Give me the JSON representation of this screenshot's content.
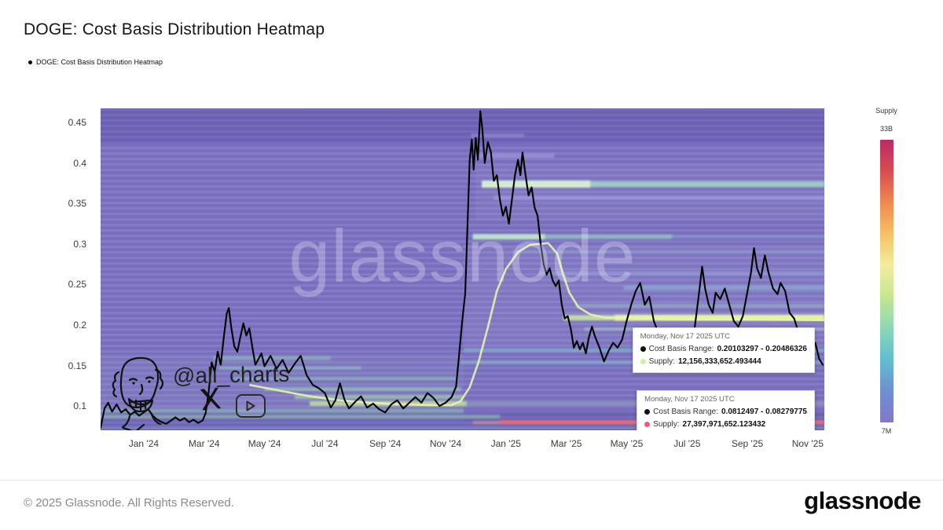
{
  "header": {
    "title": "DOGE: Cost Basis Distribution Heatmap",
    "legend_label": "DOGE: Cost Basis Distribution Heatmap"
  },
  "watermark": {
    "text": "glassnode"
  },
  "signature": {
    "handle": "@ali_charts"
  },
  "tooltips": [
    {
      "date": "Monday, Nov 17 2025 UTC",
      "cost_basis_label": "Cost Basis Range:",
      "cost_basis_value": "0.20103297 - 0.20486326",
      "supply_label": "Supply:",
      "supply_value": "12,156,333,652.493444",
      "cost_basis_dot_color": "#111111",
      "supply_dot_color": "#d6ef9c"
    },
    {
      "date": "Monday, Nov 17 2025 UTC",
      "cost_basis_label": "Cost Basis Range:",
      "cost_basis_value": "0.0812497 - 0.08279775",
      "supply_label": "Supply:",
      "supply_value": "27,397,971,652.123432",
      "cost_basis_dot_color": "#111111",
      "supply_dot_color": "#f05c6e"
    }
  ],
  "footer": {
    "copyright": "© 2025 Glassnode. All Rights Reserved.",
    "logo_text": "glassnode"
  },
  "chart_data": {
    "type": "heatmap",
    "title": "DOGE: Cost Basis Distribution Heatmap",
    "x_axis_desc": "Date, Nov 2023 - Nov 2025 (months relative to Jan 2024)",
    "y_axis_desc": "DOGE price / cost basis (USD)",
    "x_domain": [
      -1.43,
      22.55
    ],
    "y_domain": [
      0.071,
      0.4685
    ],
    "x_ticks": [
      {
        "label": "Jan '24",
        "m": 0
      },
      {
        "label": "Mar '24",
        "m": 2
      },
      {
        "label": "May '24",
        "m": 4
      },
      {
        "label": "Jul '24",
        "m": 6
      },
      {
        "label": "Sep '24",
        "m": 8
      },
      {
        "label": "Nov '24",
        "m": 10
      },
      {
        "label": "Jan '25",
        "m": 12
      },
      {
        "label": "Mar '25",
        "m": 14
      },
      {
        "label": "May '25",
        "m": 16
      },
      {
        "label": "Jul '25",
        "m": 18
      },
      {
        "label": "Sep '25",
        "m": 20
      },
      {
        "label": "Nov '25",
        "m": 22
      }
    ],
    "y_ticks": [
      "0.45",
      "0.4",
      "0.35",
      "0.3",
      "0.25",
      "0.2",
      "0.15",
      "0.1"
    ],
    "colorbar": {
      "title": "Supply",
      "max_label": "33B",
      "min_label": "7M",
      "stops": [
        "#bb2a66",
        "#d84d51",
        "#ef8950",
        "#f6c164",
        "#f2ee9e",
        "#c4e690",
        "#8cd8b6",
        "#63bdd1",
        "#6f8ed1",
        "#8278c8"
      ]
    },
    "base_color": "#7d73c3",
    "price_line_color": "#000000",
    "curve_color": "#e9f3ae",
    "soft_regions": [
      {
        "p_from": 0.4685,
        "p_to": 0.425,
        "m_from": -1.43,
        "m_to": 22.55,
        "color": "rgba(62,50,148,0.22)"
      },
      {
        "p_from": 0.4,
        "p_to": 0.33,
        "m_from": 11.0,
        "m_to": 22.55,
        "color": "rgba(255,255,255,0.05)"
      },
      {
        "p_from": 0.3,
        "p_to": 0.175,
        "m_from": 10.6,
        "m_to": 22.55,
        "color": "rgba(255,255,255,0.06)"
      },
      {
        "p_from": 0.165,
        "p_to": 0.08,
        "m_from": -1.43,
        "m_to": 10.6,
        "color": "rgba(190,230,200,0.07)"
      },
      {
        "p_from": 0.095,
        "p_to": 0.071,
        "m_from": -1.43,
        "m_to": 22.55,
        "color": "rgba(58,46,140,0.18)"
      }
    ],
    "heatmap_bands": [
      {
        "price": 0.435,
        "from": 10.85,
        "to": 12.6,
        "w": 5,
        "color": "#8e85cf",
        "op": 0.8
      },
      {
        "price": 0.41,
        "from": 10.9,
        "to": 13.6,
        "w": 6,
        "color": "#978ed5",
        "op": 0.9
      },
      {
        "price": 0.375,
        "from": 11.2,
        "to": 14.8,
        "w": 9,
        "color": "#d8f2d0",
        "op": 0.95
      },
      {
        "price": 0.375,
        "from": 14.8,
        "to": 22.55,
        "w": 7,
        "color": "#a6dfc6",
        "op": 0.8
      },
      {
        "price": 0.358,
        "from": 11.6,
        "to": 22.55,
        "w": 5,
        "color": "#9d95d8",
        "op": 0.9
      },
      {
        "price": 0.31,
        "from": 10.9,
        "to": 13.3,
        "w": 7,
        "color": "#c2ebc8",
        "op": 0.9
      },
      {
        "price": 0.31,
        "from": 13.3,
        "to": 17.5,
        "w": 6,
        "color": "#96d6c0",
        "op": 0.65
      },
      {
        "price": 0.31,
        "from": 17.5,
        "to": 22.55,
        "w": 5,
        "color": "#8ab8da",
        "op": 0.35
      },
      {
        "price": 0.292,
        "from": 12.2,
        "to": 22.55,
        "w": 4,
        "color": "#90c2da",
        "op": 0.3
      },
      {
        "price": 0.265,
        "from": 13.1,
        "to": 22.55,
        "w": 5,
        "color": "#9aaade",
        "op": 0.5
      },
      {
        "price": 0.247,
        "from": 15.9,
        "to": 22.55,
        "w": 5,
        "color": "#8ed0d6",
        "op": 0.5
      },
      {
        "price": 0.225,
        "from": 14.3,
        "to": 22.55,
        "w": 4,
        "color": "#a2d6c2",
        "op": 0.45
      },
      {
        "price": 0.21,
        "from": 13.9,
        "to": 15.6,
        "w": 7,
        "color": "#cdeb9e",
        "op": 0.85
      },
      {
        "price": 0.21,
        "from": 15.6,
        "to": 22.55,
        "w": 8,
        "color": "#e2f4a0",
        "op": 1
      },
      {
        "price": 0.196,
        "from": 14.6,
        "to": 22.55,
        "w": 4,
        "color": "#aedec0",
        "op": 0.5
      },
      {
        "price": 0.17,
        "from": 10.6,
        "to": 22.55,
        "w": 5,
        "color": "#82c8c6",
        "op": 0.55
      },
      {
        "price": 0.155,
        "from": 10.5,
        "to": 22.55,
        "w": 5,
        "color": "#88cdc9",
        "op": 0.5
      },
      {
        "price": 0.16,
        "from": 2.3,
        "to": 6.2,
        "w": 5,
        "color": "#8fceba",
        "op": 0.5
      },
      {
        "price": 0.148,
        "from": 2.5,
        "to": 7.2,
        "w": 4,
        "color": "#93d1bb",
        "op": 0.5
      },
      {
        "price": 0.135,
        "from": 3.0,
        "to": 10.4,
        "w": 4,
        "color": "#90cfb7",
        "op": 0.5
      },
      {
        "price": 0.122,
        "from": 4.0,
        "to": 10.5,
        "w": 5,
        "color": "#9bd8ad",
        "op": 0.55
      },
      {
        "price": 0.112,
        "from": 5.0,
        "to": 10.6,
        "w": 5,
        "color": "#abdfa4",
        "op": 0.6
      },
      {
        "price": 0.104,
        "from": 5.5,
        "to": 10.7,
        "w": 6,
        "color": "#c6e89a",
        "op": 0.8
      },
      {
        "price": 0.104,
        "from": 10.7,
        "to": 22.55,
        "w": 4,
        "color": "#a6d8a6",
        "op": 0.4
      },
      {
        "price": 0.095,
        "from": -1.43,
        "to": 10.6,
        "w": 5,
        "color": "#8fccb2",
        "op": 0.5
      },
      {
        "price": 0.088,
        "from": -1.43,
        "to": 11.8,
        "w": 5,
        "color": "#97d0ae",
        "op": 0.5
      },
      {
        "price": 0.0805,
        "from": 10.9,
        "to": 11.8,
        "w": 4,
        "color": "#e39a8c",
        "op": 0.6
      },
      {
        "price": 0.081,
        "from": 11.8,
        "to": 22.55,
        "w": 5,
        "color": "#f06a78",
        "op": 0.95
      },
      {
        "price": 0.0745,
        "from": -1.43,
        "to": 22.55,
        "w": 4,
        "color": "#80b6d2",
        "op": 0.28
      }
    ],
    "cost_basis_curve": [
      [
        3.5,
        0.127
      ],
      [
        4.5,
        0.12
      ],
      [
        5.5,
        0.113
      ],
      [
        6.5,
        0.108
      ],
      [
        7.5,
        0.105
      ],
      [
        8.5,
        0.103
      ],
      [
        9.5,
        0.102
      ],
      [
        10.2,
        0.102
      ],
      [
        10.5,
        0.107
      ],
      [
        10.8,
        0.124
      ],
      [
        11.1,
        0.156
      ],
      [
        11.4,
        0.198
      ],
      [
        11.7,
        0.243
      ],
      [
        12.0,
        0.27
      ],
      [
        12.4,
        0.291
      ],
      [
        12.8,
        0.3
      ],
      [
        13.4,
        0.302
      ],
      [
        13.7,
        0.289
      ],
      [
        13.9,
        0.263
      ],
      [
        14.1,
        0.241
      ],
      [
        14.4,
        0.223
      ],
      [
        14.8,
        0.214
      ],
      [
        15.3,
        0.21
      ],
      [
        16.5,
        0.209
      ],
      [
        18.0,
        0.208
      ],
      [
        20.0,
        0.208
      ],
      [
        22.55,
        0.207
      ]
    ],
    "price_line": [
      [
        -1.43,
        0.074
      ],
      [
        -1.3,
        0.098
      ],
      [
        -1.18,
        0.105
      ],
      [
        -1.05,
        0.094
      ],
      [
        -0.9,
        0.103
      ],
      [
        -0.75,
        0.093
      ],
      [
        -0.6,
        0.097
      ],
      [
        -0.45,
        0.09
      ],
      [
        -0.3,
        0.094
      ],
      [
        -0.15,
        0.089
      ],
      [
        0.0,
        0.093
      ],
      [
        0.15,
        0.097
      ],
      [
        0.3,
        0.089
      ],
      [
        0.45,
        0.084
      ],
      [
        0.6,
        0.081
      ],
      [
        0.75,
        0.079
      ],
      [
        0.9,
        0.083
      ],
      [
        1.05,
        0.087
      ],
      [
        1.2,
        0.083
      ],
      [
        1.35,
        0.086
      ],
      [
        1.5,
        0.081
      ],
      [
        1.65,
        0.084
      ],
      [
        1.8,
        0.08
      ],
      [
        1.95,
        0.083
      ],
      [
        2.05,
        0.092
      ],
      [
        2.15,
        0.118
      ],
      [
        2.25,
        0.155
      ],
      [
        2.35,
        0.143
      ],
      [
        2.45,
        0.168
      ],
      [
        2.55,
        0.152
      ],
      [
        2.65,
        0.185
      ],
      [
        2.75,
        0.215
      ],
      [
        2.82,
        0.222
      ],
      [
        2.9,
        0.198
      ],
      [
        3.0,
        0.175
      ],
      [
        3.1,
        0.168
      ],
      [
        3.2,
        0.186
      ],
      [
        3.3,
        0.203
      ],
      [
        3.4,
        0.188
      ],
      [
        3.5,
        0.197
      ],
      [
        3.6,
        0.173
      ],
      [
        3.7,
        0.152
      ],
      [
        3.8,
        0.159
      ],
      [
        3.9,
        0.166
      ],
      [
        4.0,
        0.15
      ],
      [
        4.2,
        0.163
      ],
      [
        4.4,
        0.147
      ],
      [
        4.6,
        0.158
      ],
      [
        4.8,
        0.142
      ],
      [
        5.0,
        0.153
      ],
      [
        5.2,
        0.163
      ],
      [
        5.4,
        0.139
      ],
      [
        5.6,
        0.127
      ],
      [
        5.8,
        0.123
      ],
      [
        6.0,
        0.117
      ],
      [
        6.2,
        0.099
      ],
      [
        6.35,
        0.108
      ],
      [
        6.5,
        0.129
      ],
      [
        6.65,
        0.109
      ],
      [
        6.8,
        0.098
      ],
      [
        7.0,
        0.106
      ],
      [
        7.2,
        0.113
      ],
      [
        7.4,
        0.099
      ],
      [
        7.6,
        0.104
      ],
      [
        7.8,
        0.097
      ],
      [
        8.0,
        0.093
      ],
      [
        8.2,
        0.103
      ],
      [
        8.4,
        0.108
      ],
      [
        8.6,
        0.098
      ],
      [
        8.8,
        0.105
      ],
      [
        9.0,
        0.112
      ],
      [
        9.2,
        0.105
      ],
      [
        9.4,
        0.117
      ],
      [
        9.6,
        0.111
      ],
      [
        9.8,
        0.101
      ],
      [
        10.0,
        0.105
      ],
      [
        10.2,
        0.112
      ],
      [
        10.35,
        0.125
      ],
      [
        10.45,
        0.165
      ],
      [
        10.55,
        0.205
      ],
      [
        10.65,
        0.24
      ],
      [
        10.72,
        0.315
      ],
      [
        10.8,
        0.405
      ],
      [
        10.87,
        0.43
      ],
      [
        10.93,
        0.393
      ],
      [
        11.0,
        0.432
      ],
      [
        11.07,
        0.405
      ],
      [
        11.15,
        0.465
      ],
      [
        11.22,
        0.443
      ],
      [
        11.3,
        0.401
      ],
      [
        11.4,
        0.427
      ],
      [
        11.5,
        0.415
      ],
      [
        11.6,
        0.379
      ],
      [
        11.7,
        0.386
      ],
      [
        11.8,
        0.356
      ],
      [
        11.9,
        0.336
      ],
      [
        12.0,
        0.347
      ],
      [
        12.1,
        0.326
      ],
      [
        12.2,
        0.356
      ],
      [
        12.3,
        0.386
      ],
      [
        12.4,
        0.405
      ],
      [
        12.48,
        0.386
      ],
      [
        12.55,
        0.414
      ],
      [
        12.65,
        0.386
      ],
      [
        12.75,
        0.361
      ],
      [
        12.85,
        0.371
      ],
      [
        12.95,
        0.346
      ],
      [
        13.05,
        0.336
      ],
      [
        13.15,
        0.301
      ],
      [
        13.25,
        0.276
      ],
      [
        13.35,
        0.263
      ],
      [
        13.45,
        0.271
      ],
      [
        13.55,
        0.256
      ],
      [
        13.65,
        0.249
      ],
      [
        13.75,
        0.256
      ],
      [
        13.85,
        0.226
      ],
      [
        13.95,
        0.209
      ],
      [
        14.05,
        0.212
      ],
      [
        14.15,
        0.196
      ],
      [
        14.25,
        0.173
      ],
      [
        14.35,
        0.181
      ],
      [
        14.45,
        0.171
      ],
      [
        14.55,
        0.179
      ],
      [
        14.65,
        0.166
      ],
      [
        14.75,
        0.186
      ],
      [
        14.85,
        0.199
      ],
      [
        14.95,
        0.187
      ],
      [
        15.1,
        0.173
      ],
      [
        15.25,
        0.156
      ],
      [
        15.4,
        0.169
      ],
      [
        15.55,
        0.179
      ],
      [
        15.7,
        0.173
      ],
      [
        15.85,
        0.183
      ],
      [
        16.0,
        0.206
      ],
      [
        16.15,
        0.226
      ],
      [
        16.3,
        0.243
      ],
      [
        16.45,
        0.253
      ],
      [
        16.6,
        0.226
      ],
      [
        16.75,
        0.236
      ],
      [
        16.9,
        0.206
      ],
      [
        17.05,
        0.191
      ],
      [
        17.2,
        0.173
      ],
      [
        17.35,
        0.163
      ],
      [
        17.5,
        0.159
      ],
      [
        17.65,
        0.173
      ],
      [
        17.8,
        0.179
      ],
      [
        17.95,
        0.169
      ],
      [
        18.1,
        0.173
      ],
      [
        18.25,
        0.196
      ],
      [
        18.4,
        0.241
      ],
      [
        18.5,
        0.273
      ],
      [
        18.6,
        0.246
      ],
      [
        18.72,
        0.226
      ],
      [
        18.85,
        0.216
      ],
      [
        18.95,
        0.241
      ],
      [
        19.1,
        0.233
      ],
      [
        19.25,
        0.246
      ],
      [
        19.4,
        0.226
      ],
      [
        19.55,
        0.206
      ],
      [
        19.7,
        0.199
      ],
      [
        19.85,
        0.212
      ],
      [
        20.0,
        0.242
      ],
      [
        20.12,
        0.266
      ],
      [
        20.22,
        0.296
      ],
      [
        20.32,
        0.271
      ],
      [
        20.45,
        0.259
      ],
      [
        20.58,
        0.287
      ],
      [
        20.7,
        0.266
      ],
      [
        20.85,
        0.246
      ],
      [
        21.0,
        0.239
      ],
      [
        21.1,
        0.253
      ],
      [
        21.25,
        0.243
      ],
      [
        21.4,
        0.216
      ],
      [
        21.55,
        0.209
      ],
      [
        21.7,
        0.191
      ],
      [
        21.85,
        0.197
      ],
      [
        22.0,
        0.186
      ],
      [
        22.1,
        0.169
      ],
      [
        22.25,
        0.179
      ],
      [
        22.38,
        0.159
      ],
      [
        22.5,
        0.152
      ]
    ]
  }
}
